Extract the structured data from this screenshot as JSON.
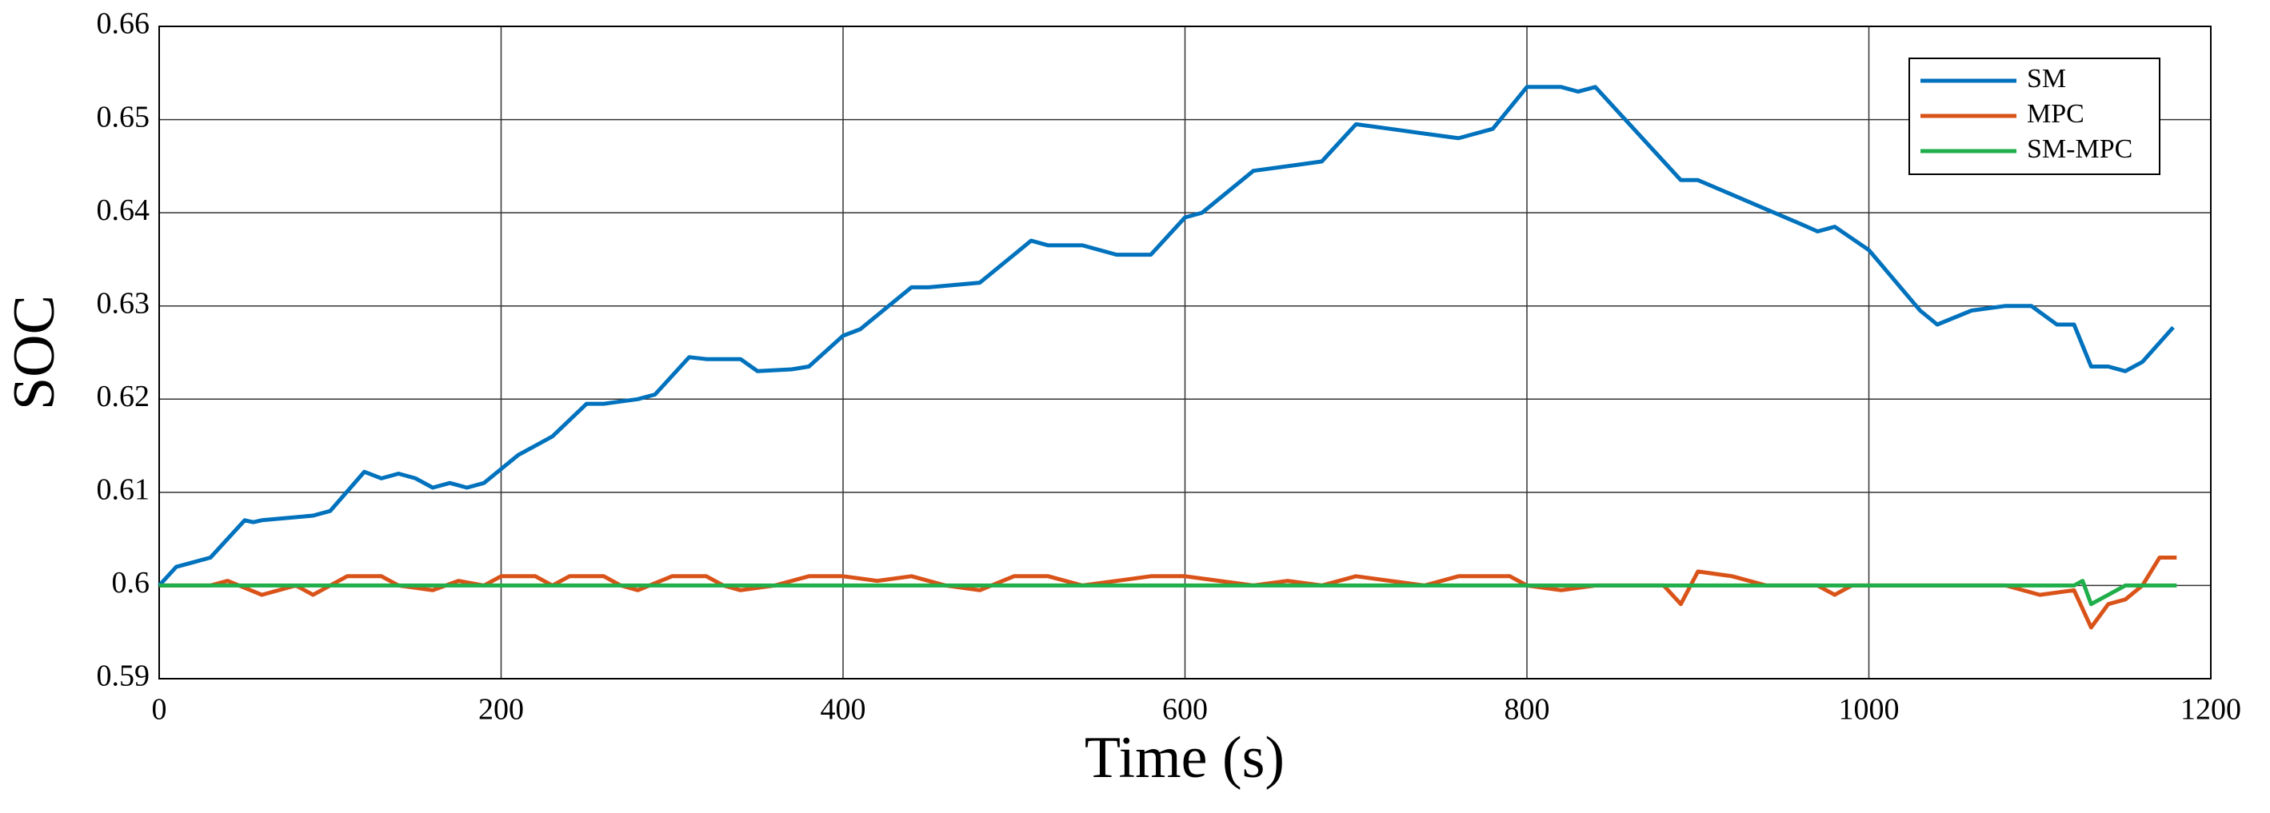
{
  "chart_data": {
    "type": "line",
    "xlabel": "Time (s)",
    "ylabel": "SOC",
    "xlim": [
      0,
      1200
    ],
    "ylim": [
      0.59,
      0.66
    ],
    "xticks": [
      0,
      200,
      400,
      600,
      800,
      1000,
      1200
    ],
    "yticks": [
      0.59,
      0.6,
      0.61,
      0.62,
      0.63,
      0.64,
      0.65,
      0.66
    ],
    "grid": true,
    "legend": "upper right",
    "series": [
      {
        "name": "SM",
        "color": "#0072bd",
        "x": [
          0,
          10,
          20,
          30,
          50,
          55,
          60,
          90,
          100,
          120,
          130,
          140,
          150,
          160,
          170,
          180,
          190,
          210,
          220,
          230,
          250,
          260,
          280,
          290,
          310,
          320,
          340,
          350,
          370,
          380,
          400,
          410,
          440,
          450,
          480,
          510,
          520,
          540,
          560,
          580,
          600,
          610,
          640,
          660,
          680,
          700,
          720,
          740,
          760,
          780,
          800,
          820,
          830,
          840,
          880,
          890,
          900,
          960,
          970,
          980,
          1000,
          1030,
          1040,
          1060,
          1080,
          1095,
          1110,
          1120,
          1130,
          1140,
          1150,
          1160,
          1178
        ],
        "values": [
          0.6,
          0.602,
          0.6025,
          0.603,
          0.607,
          0.6068,
          0.607,
          0.6075,
          0.608,
          0.6122,
          0.6115,
          0.612,
          0.6115,
          0.6105,
          0.611,
          0.6105,
          0.611,
          0.614,
          0.615,
          0.616,
          0.6195,
          0.6195,
          0.62,
          0.6205,
          0.6245,
          0.6243,
          0.6243,
          0.623,
          0.6232,
          0.6235,
          0.6268,
          0.6275,
          0.632,
          0.632,
          0.6325,
          0.637,
          0.6365,
          0.6365,
          0.6355,
          0.6355,
          0.6395,
          0.64,
          0.6445,
          0.645,
          0.6455,
          0.6495,
          0.649,
          0.6485,
          0.648,
          0.649,
          0.6535,
          0.6535,
          0.653,
          0.6535,
          0.6455,
          0.6435,
          0.6435,
          0.6388,
          0.638,
          0.6385,
          0.636,
          0.6295,
          0.628,
          0.6295,
          0.63,
          0.63,
          0.628,
          0.628,
          0.6235,
          0.6235,
          0.623,
          0.624,
          0.6277
        ]
      },
      {
        "name": "MPC",
        "color": "#d95319",
        "x": [
          0,
          30,
          40,
          60,
          80,
          90,
          110,
          130,
          140,
          160,
          175,
          190,
          200,
          220,
          230,
          240,
          260,
          270,
          280,
          300,
          320,
          330,
          340,
          360,
          380,
          400,
          420,
          440,
          460,
          480,
          500,
          520,
          540,
          560,
          580,
          600,
          620,
          640,
          660,
          680,
          700,
          720,
          740,
          760,
          790,
          800,
          820,
          840,
          880,
          890,
          900,
          920,
          940,
          970,
          980,
          990,
          1030,
          1080,
          1100,
          1120,
          1130,
          1140,
          1150,
          1160,
          1170,
          1180
        ],
        "values": [
          0.6,
          0.6,
          0.6005,
          0.599,
          0.6,
          0.599,
          0.601,
          0.601,
          0.6,
          0.5995,
          0.6005,
          0.6,
          0.601,
          0.601,
          0.6,
          0.601,
          0.601,
          0.6,
          0.5995,
          0.601,
          0.601,
          0.6,
          0.5995,
          0.6,
          0.601,
          0.601,
          0.6005,
          0.601,
          0.6,
          0.5995,
          0.601,
          0.601,
          0.6,
          0.6005,
          0.601,
          0.601,
          0.6005,
          0.6,
          0.6005,
          0.6,
          0.601,
          0.6005,
          0.6,
          0.601,
          0.601,
          0.6,
          0.5995,
          0.6,
          0.6,
          0.598,
          0.6015,
          0.601,
          0.6,
          0.6,
          0.599,
          0.6,
          0.6,
          0.6,
          0.599,
          0.5995,
          0.5955,
          0.598,
          0.5985,
          0.6,
          0.603,
          0.603
        ]
      },
      {
        "name": "SM-MPC",
        "color": "#1fae4a",
        "x": [
          0,
          400,
          800,
          1120,
          1125,
          1130,
          1140,
          1150,
          1180
        ],
        "values": [
          0.6,
          0.6,
          0.6,
          0.6,
          0.6005,
          0.598,
          0.599,
          0.6,
          0.6
        ]
      }
    ]
  }
}
